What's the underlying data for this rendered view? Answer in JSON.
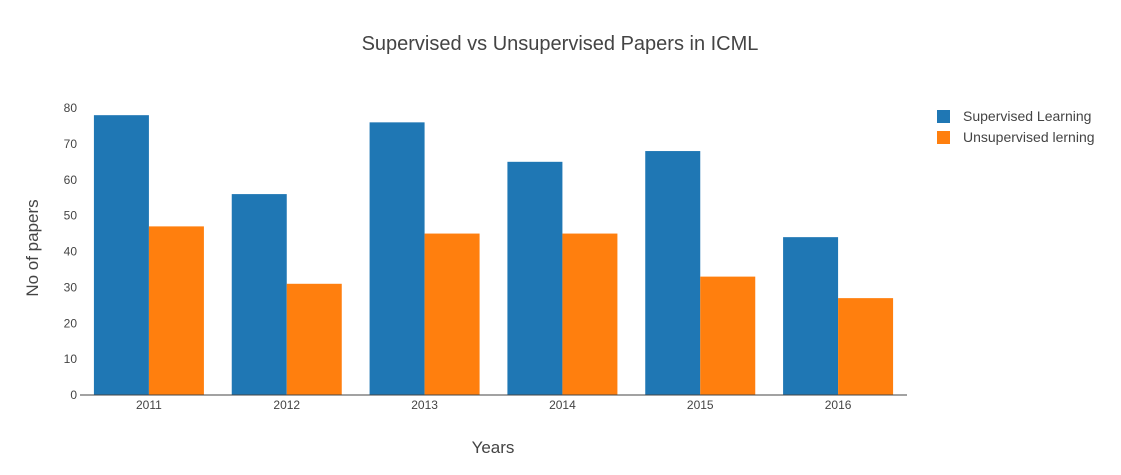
{
  "chart_data": {
    "type": "bar",
    "title": "Supervised vs Unsupervised Papers in ICML",
    "xlabel": "Years",
    "ylabel": "No of papers",
    "categories": [
      "2011",
      "2012",
      "2013",
      "2014",
      "2015",
      "2016"
    ],
    "series": [
      {
        "name": "Supervised Learning",
        "values": [
          78,
          56,
          76,
          65,
          68,
          44
        ],
        "color": "#1f77b4"
      },
      {
        "name": "Unsupervised lerning",
        "values": [
          47,
          31,
          45,
          45,
          33,
          27
        ],
        "color": "#ff7f0e"
      }
    ],
    "ylim": [
      0,
      80
    ],
    "yticks": [
      0,
      10,
      20,
      30,
      40,
      50,
      60,
      70,
      80
    ],
    "grid": false,
    "legend": "top-right"
  }
}
